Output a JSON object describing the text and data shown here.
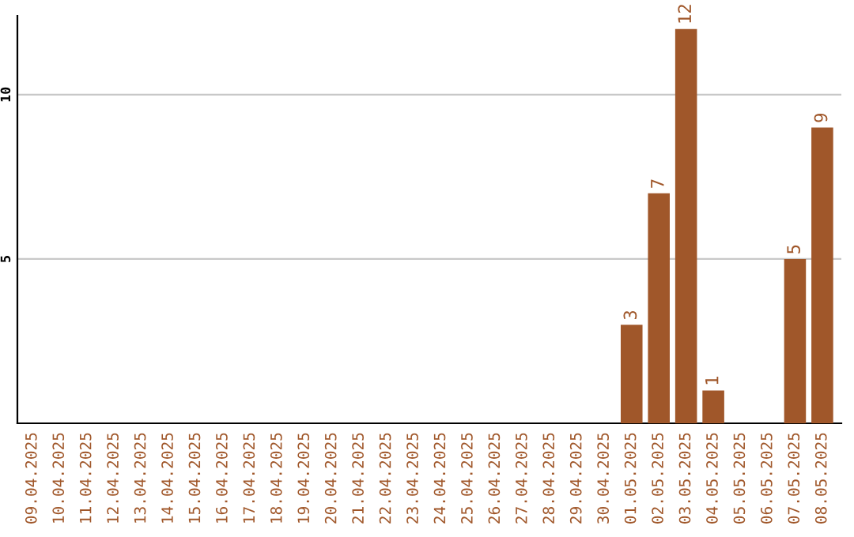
{
  "chart_data": {
    "type": "bar",
    "categories": [
      "09.04.2025",
      "10.04.2025",
      "11.04.2025",
      "12.04.2025",
      "13.04.2025",
      "14.04.2025",
      "15.04.2025",
      "16.04.2025",
      "17.04.2025",
      "18.04.2025",
      "19.04.2025",
      "20.04.2025",
      "21.04.2025",
      "22.04.2025",
      "23.04.2025",
      "24.04.2025",
      "25.04.2025",
      "26.04.2025",
      "27.04.2025",
      "28.04.2025",
      "29.04.2025",
      "30.04.2025",
      "01.05.2025",
      "02.05.2025",
      "03.05.2025",
      "04.05.2025",
      "05.05.2025",
      "06.05.2025",
      "07.05.2025",
      "08.05.2025"
    ],
    "values": [
      0,
      0,
      0,
      0,
      0,
      0,
      0,
      0,
      0,
      0,
      0,
      0,
      0,
      0,
      0,
      0,
      0,
      0,
      0,
      0,
      0,
      0,
      3,
      7,
      12,
      1,
      0,
      0,
      5,
      9
    ],
    "value_labels": [
      null,
      null,
      null,
      null,
      null,
      null,
      null,
      null,
      null,
      null,
      null,
      null,
      null,
      null,
      null,
      null,
      null,
      null,
      null,
      null,
      null,
      null,
      "3",
      "7",
      "12",
      "1",
      null,
      null,
      "5",
      "9"
    ],
    "color": "#a0572a",
    "ylim": [
      0,
      12.4
    ],
    "yticks": [
      5,
      10
    ],
    "grid": "y"
  }
}
